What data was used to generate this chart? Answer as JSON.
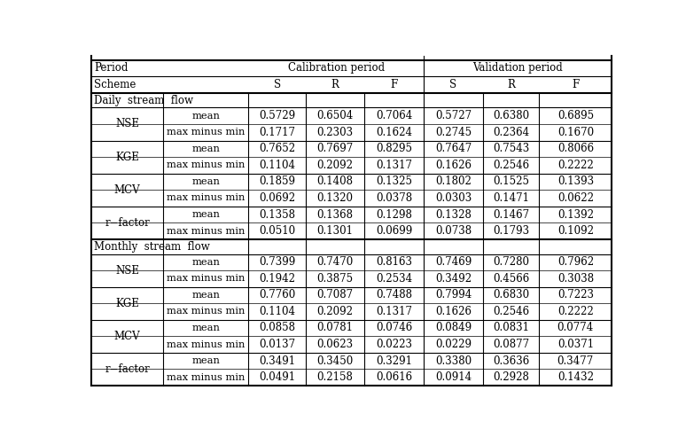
{
  "sections": [
    {
      "title": "Daily stream flow",
      "metrics": [
        {
          "name": "NSE",
          "rows": [
            {
              "label": "mean",
              "values": [
                "0.5729",
                "0.6504",
                "0.7064",
                "0.5727",
                "0.6380",
                "0.6895"
              ]
            },
            {
              "label": "max minus min",
              "values": [
                "0.1717",
                "0.2303",
                "0.1624",
                "0.2745",
                "0.2364",
                "0.1670"
              ]
            }
          ]
        },
        {
          "name": "KGE",
          "rows": [
            {
              "label": "mean",
              "values": [
                "0.7652",
                "0.7697",
                "0.8295",
                "0.7647",
                "0.7543",
                "0.8066"
              ]
            },
            {
              "label": "max minus min",
              "values": [
                "0.1104",
                "0.2092",
                "0.1317",
                "0.1626",
                "0.2546",
                "0.2222"
              ]
            }
          ]
        },
        {
          "name": "MCV",
          "rows": [
            {
              "label": "mean",
              "values": [
                "0.1859",
                "0.1408",
                "0.1325",
                "0.1802",
                "0.1525",
                "0.1393"
              ]
            },
            {
              "label": "max minus min",
              "values": [
                "0.0692",
                "0.1320",
                "0.0378",
                "0.0303",
                "0.1471",
                "0.0622"
              ]
            }
          ]
        },
        {
          "name": "r−factor",
          "rows": [
            {
              "label": "mean",
              "values": [
                "0.1358",
                "0.1368",
                "0.1298",
                "0.1328",
                "0.1467",
                "0.1392"
              ]
            },
            {
              "label": "max minus min",
              "values": [
                "0.0510",
                "0.1301",
                "0.0699",
                "0.0738",
                "0.1793",
                "0.1092"
              ]
            }
          ]
        }
      ]
    },
    {
      "title": "Monthly stream flow",
      "metrics": [
        {
          "name": "NSE",
          "rows": [
            {
              "label": "mean",
              "values": [
                "0.7399",
                "0.7470",
                "0.8163",
                "0.7469",
                "0.7280",
                "0.7962"
              ]
            },
            {
              "label": "max minus min",
              "values": [
                "0.1942",
                "0.3875",
                "0.2534",
                "0.3492",
                "0.4566",
                "0.3038"
              ]
            }
          ]
        },
        {
          "name": "KGE",
          "rows": [
            {
              "label": "mean",
              "values": [
                "0.7760",
                "0.7087",
                "0.7488",
                "0.7994",
                "0.6830",
                "0.7223"
              ]
            },
            {
              "label": "max minus min",
              "values": [
                "0.1104",
                "0.2092",
                "0.1317",
                "0.1626",
                "0.2546",
                "0.2222"
              ]
            }
          ]
        },
        {
          "name": "MCV",
          "rows": [
            {
              "label": "mean",
              "values": [
                "0.0858",
                "0.0781",
                "0.0746",
                "0.0849",
                "0.0831",
                "0.0774"
              ]
            },
            {
              "label": "max minus min",
              "values": [
                "0.0137",
                "0.0623",
                "0.0223",
                "0.0229",
                "0.0877",
                "0.0371"
              ]
            }
          ]
        },
        {
          "name": "r−factor",
          "rows": [
            {
              "label": "mean",
              "values": [
                "0.3491",
                "0.3450",
                "0.3291",
                "0.3380",
                "0.3636",
                "0.3477"
              ]
            },
            {
              "label": "max minus min",
              "values": [
                "0.0491",
                "0.2158",
                "0.0616",
                "0.0914",
                "0.2928",
                "0.1432"
              ]
            }
          ]
        }
      ]
    }
  ],
  "background_color": "#ffffff",
  "line_color": "#000000",
  "font_size": 8.5
}
